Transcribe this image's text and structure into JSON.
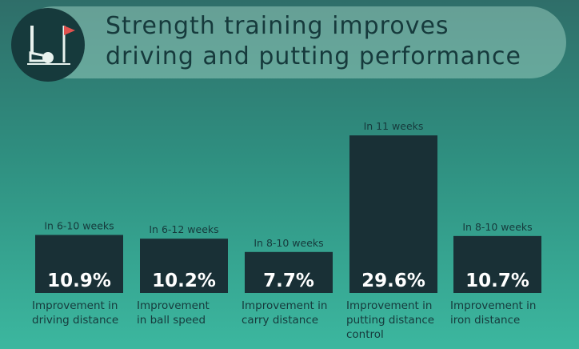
{
  "title": {
    "line1": "Strength training improves",
    "line2": "driving and putting performance"
  },
  "icon": "golf-club-ball-flag-icon",
  "colors": {
    "bar": "#193036",
    "text_dark": "#163a3c",
    "value_text": "#ffffff",
    "flag": "#e2524f",
    "icon_line": "#e8f2ee"
  },
  "chart_data": {
    "type": "bar",
    "categories": [
      "Improvement in driving distance",
      "Improvement in ball speed",
      "Improvement in carry distance",
      "Improvement in putting distance control",
      "Improvement in iron distance"
    ],
    "category_lines": [
      [
        "Improvement in",
        "driving distance"
      ],
      [
        "Improvement",
        "in ball speed"
      ],
      [
        "Improvement in",
        "carry distance"
      ],
      [
        "Improvement in",
        "putting distance",
        "control"
      ],
      [
        "Improvement in",
        "iron distance"
      ]
    ],
    "timeframes": [
      "In 6-10 weeks",
      "In 6-12 weeks",
      "In 8-10 weeks",
      "In 11 weeks",
      "In 8-10 weeks"
    ],
    "values": [
      10.9,
      10.2,
      7.7,
      29.6,
      10.7
    ],
    "value_labels": [
      "10.9%",
      "10.2%",
      "7.7%",
      "29.6%",
      "10.7%"
    ],
    "unit": "%",
    "grid": false,
    "legend": "none"
  }
}
